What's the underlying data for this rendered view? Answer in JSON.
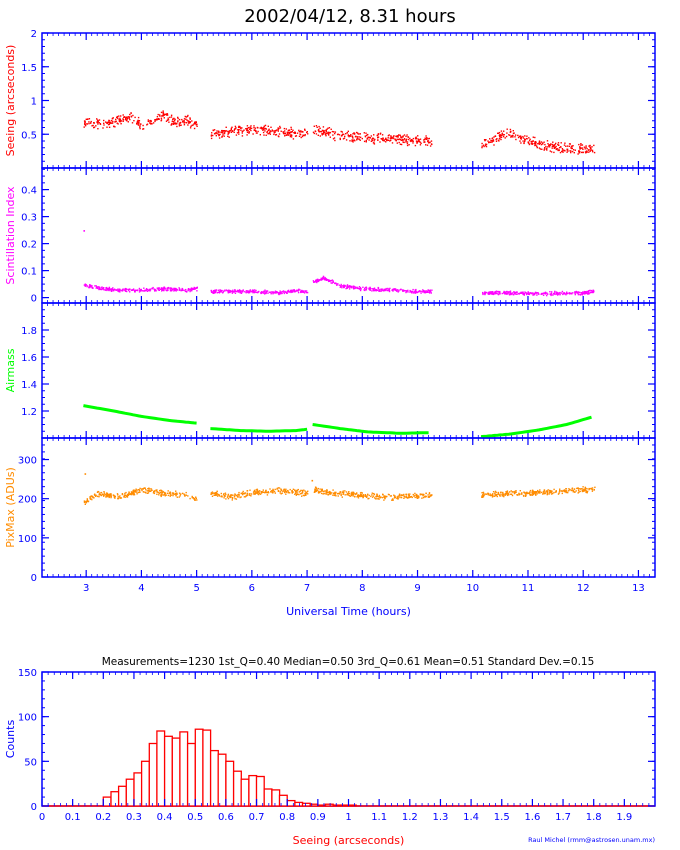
{
  "title": "2002/04/12, 8.31 hours",
  "credit": "Raul Michel (rmm@astrosen.unam.mx)",
  "colors": {
    "axis": "#0000ff",
    "seeing": "#ff0000",
    "scint": "#ff00ff",
    "airmass": "#00ff00",
    "pixmax": "#ff8c00",
    "title": "#000000",
    "stats": "#000000",
    "hist": "#ff0000"
  },
  "chart_data": [
    {
      "type": "scatter",
      "name": "seeing",
      "ylabel": "Seeing (arcseconds)",
      "ylim": [
        0,
        2
      ],
      "yticks": [
        "0.5",
        "1",
        "1.5",
        "2"
      ],
      "xlim": [
        2.2,
        13.3
      ],
      "segments": [
        {
          "x": [
            2.95,
            3.3,
            3.6,
            3.8,
            4.0,
            4.2,
            4.4,
            4.6,
            4.8,
            5.0
          ],
          "y": [
            0.7,
            0.66,
            0.72,
            0.78,
            0.62,
            0.7,
            0.8,
            0.68,
            0.72,
            0.62
          ]
        },
        {
          "x": [
            5.25,
            5.6,
            6.0,
            6.4,
            6.8,
            7.0
          ],
          "y": [
            0.52,
            0.55,
            0.58,
            0.56,
            0.52,
            0.52
          ]
        },
        {
          "x": [
            7.1,
            7.5,
            8.0,
            8.5,
            9.0,
            9.25
          ],
          "y": [
            0.58,
            0.5,
            0.46,
            0.44,
            0.42,
            0.4
          ]
        },
        {
          "x": [
            10.15,
            10.4,
            10.6,
            10.9,
            11.2,
            11.6,
            12.0,
            12.2
          ],
          "y": [
            0.34,
            0.44,
            0.52,
            0.44,
            0.36,
            0.3,
            0.29,
            0.29
          ]
        }
      ]
    },
    {
      "type": "scatter",
      "name": "scintillation",
      "ylabel": "Scintillation Index",
      "ylim": [
        -0.02,
        0.48
      ],
      "yticks": [
        "0",
        "0.1",
        "0.2",
        "0.3",
        "0.4"
      ],
      "xlim": [
        2.2,
        13.3
      ],
      "segments": [
        {
          "x": [
            2.95,
            3.3,
            3.6,
            4.0,
            4.4,
            4.8,
            5.0
          ],
          "y": [
            0.05,
            0.035,
            0.03,
            0.03,
            0.035,
            0.03,
            0.035
          ]
        },
        {
          "x": [
            5.25,
            5.6,
            6.0,
            6.5,
            6.8,
            7.0
          ],
          "y": [
            0.025,
            0.025,
            0.025,
            0.02,
            0.03,
            0.02
          ]
        },
        {
          "x": [
            7.1,
            7.3,
            7.6,
            8.0,
            8.5,
            9.0,
            9.25
          ],
          "y": [
            0.06,
            0.075,
            0.045,
            0.035,
            0.03,
            0.025,
            0.025
          ]
        },
        {
          "x": [
            10.15,
            10.6,
            11.0,
            11.5,
            12.0,
            12.2
          ],
          "y": [
            0.02,
            0.02,
            0.018,
            0.018,
            0.02,
            0.025
          ]
        }
      ],
      "outliers": [
        {
          "x": 2.95,
          "y": 0.25
        }
      ]
    },
    {
      "type": "line",
      "name": "airmass",
      "ylabel": "Airmass",
      "ylim": [
        1,
        2
      ],
      "yticks": [
        "1.2",
        "1.4",
        "1.6",
        "1.8"
      ],
      "xlim": [
        2.2,
        13.3
      ],
      "segments": [
        {
          "x": [
            2.95,
            3.5,
            4.0,
            4.5,
            5.0
          ],
          "y": [
            1.24,
            1.2,
            1.16,
            1.13,
            1.11
          ]
        },
        {
          "x": [
            5.25,
            5.8,
            6.3,
            6.8,
            7.0
          ],
          "y": [
            1.07,
            1.055,
            1.05,
            1.055,
            1.065
          ]
        },
        {
          "x": [
            7.1,
            7.6,
            8.1,
            8.7,
            9.25
          ],
          "y": [
            1.1,
            1.07,
            1.045,
            1.035,
            1.04
          ]
        },
        {
          "x": [
            10.15,
            10.7,
            11.2,
            11.7,
            12.2
          ],
          "y": [
            1.01,
            1.03,
            1.06,
            1.1,
            1.16
          ]
        }
      ]
    },
    {
      "type": "scatter",
      "name": "pixmax",
      "ylabel": "PixMax (ADUs)",
      "ylim": [
        0,
        355
      ],
      "yticks": [
        "0",
        "100",
        "200",
        "300"
      ],
      "xlim": [
        2.2,
        13.3
      ],
      "xlabel": "Universal Time (hours)",
      "xticks": [
        "3",
        "4",
        "5",
        "6",
        "7",
        "8",
        "9",
        "10",
        "11",
        "12",
        "13"
      ],
      "segments": [
        {
          "x": [
            2.95,
            3.05,
            3.2,
            3.6,
            4.0,
            4.4,
            4.8,
            5.0
          ],
          "y": [
            190,
            200,
            215,
            205,
            225,
            215,
            210,
            200
          ]
        },
        {
          "x": [
            5.25,
            5.6,
            6.0,
            6.5,
            7.0
          ],
          "y": [
            215,
            205,
            218,
            222,
            215
          ]
        },
        {
          "x": [
            7.1,
            7.5,
            8.0,
            8.5,
            9.0,
            9.25
          ],
          "y": [
            225,
            215,
            210,
            205,
            210,
            210
          ]
        },
        {
          "x": [
            10.15,
            10.6,
            11.0,
            11.5,
            12.0,
            12.2
          ],
          "y": [
            210,
            215,
            215,
            220,
            225,
            225
          ]
        }
      ],
      "outliers": [
        {
          "x": 2.97,
          "y": 265
        },
        {
          "x": 7.08,
          "y": 248
        }
      ]
    },
    {
      "type": "bar",
      "name": "seeing-histogram",
      "stats": "Measurements=1230   1st_Q=0.40   Median=0.50   3rd_Q=0.61   Mean=0.51   Standard Dev.=0.15",
      "xlabel": "Seeing (arcseconds)",
      "ylabel": "Counts",
      "ylim": [
        0,
        150
      ],
      "yticks": [
        "0",
        "50",
        "100",
        "150"
      ],
      "xlim": [
        0,
        2
      ],
      "xticks": [
        "0",
        "0.1",
        "0.2",
        "0.3",
        "0.4",
        "0.5",
        "0.6",
        "0.7",
        "0.8",
        "0.9",
        "1",
        "1.1",
        "1.2",
        "1.3",
        "1.4",
        "1.5",
        "1.6",
        "1.7",
        "1.8",
        "1.9"
      ],
      "bin_width": 0.025,
      "bin_start": 0.2,
      "values": [
        10,
        16,
        22,
        30,
        37,
        50,
        70,
        84,
        78,
        76,
        83,
        70,
        86,
        85,
        62,
        58,
        50,
        39,
        30,
        34,
        33,
        19,
        18,
        12,
        6,
        4,
        3,
        2,
        1,
        2,
        1,
        1,
        1
      ]
    }
  ]
}
